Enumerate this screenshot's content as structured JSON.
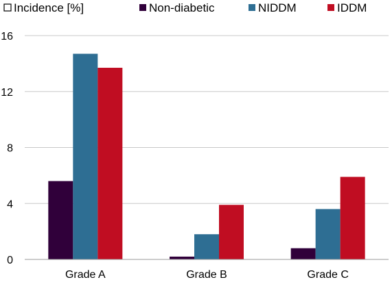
{
  "chart_data": {
    "type": "bar",
    "categories": [
      "Grade A",
      "Grade B",
      "Grade C"
    ],
    "series": [
      {
        "name": "Non-diabetic",
        "values": [
          5.6,
          0.2,
          0.8
        ],
        "color": "#30003a"
      },
      {
        "name": "NIDDM",
        "values": [
          14.7,
          1.8,
          3.6
        ],
        "color": "#2e6e93"
      },
      {
        "name": "IDDM",
        "values": [
          13.7,
          3.9,
          5.9
        ],
        "color": "#c00d22"
      }
    ],
    "legend_title": "Incidence [%]",
    "legend_position": "top",
    "ylim": [
      0,
      16
    ],
    "yticks": [
      0,
      4,
      8,
      12,
      16
    ],
    "grid": true
  }
}
